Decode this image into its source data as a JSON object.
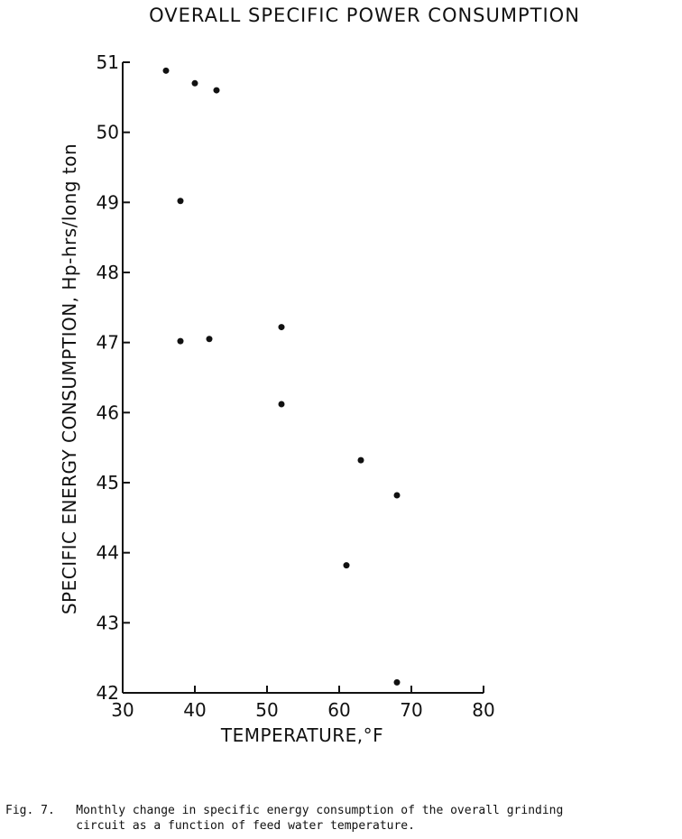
{
  "chart_data": {
    "type": "scatter",
    "title": "OVERALL SPECIFIC POWER CONSUMPTION",
    "xlabel": "TEMPERATURE,°F",
    "ylabel": "SPECIFIC ENERGY CONSUMPTION, Hp-hrs/long ton",
    "xlim": [
      30,
      80
    ],
    "ylim": [
      42,
      51
    ],
    "xticks": [
      30,
      40,
      50,
      60,
      70,
      80
    ],
    "yticks": [
      42,
      43,
      44,
      45,
      46,
      47,
      48,
      49,
      50,
      51
    ],
    "points": [
      {
        "x": 36,
        "y": 50.88
      },
      {
        "x": 40,
        "y": 50.7
      },
      {
        "x": 43,
        "y": 50.6
      },
      {
        "x": 38,
        "y": 49.02
      },
      {
        "x": 38,
        "y": 47.02
      },
      {
        "x": 42,
        "y": 47.05
      },
      {
        "x": 52,
        "y": 47.22
      },
      {
        "x": 52,
        "y": 46.12
      },
      {
        "x": 63,
        "y": 45.32
      },
      {
        "x": 68,
        "y": 44.82
      },
      {
        "x": 61,
        "y": 43.82
      },
      {
        "x": 68,
        "y": 42.15
      }
    ],
    "grid": false,
    "legend": "none"
  },
  "caption": {
    "label": "Fig. 7.",
    "line1": "Monthly change in specific energy consumption of the overall grinding",
    "line2": "circuit as a function of feed water temperature."
  }
}
